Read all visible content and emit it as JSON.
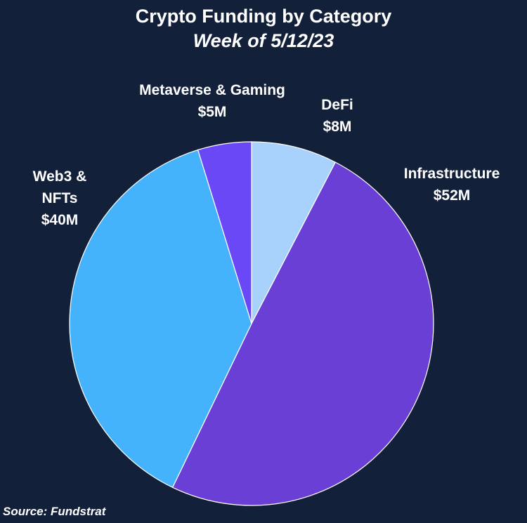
{
  "title": "Crypto Funding by Category",
  "subtitle": "Week of 5/12/23",
  "source": "Source: Fundstrat",
  "colors": {
    "background": "#13203a",
    "slice_border": "#ffffff"
  },
  "chart_data": {
    "type": "pie",
    "title": "Crypto Funding by Category",
    "subtitle": "Week of 5/12/23",
    "unit": "$M",
    "start_angle_deg": 0,
    "direction": "clockwise",
    "legend": "none",
    "slices": [
      {
        "label": "DeFi",
        "value": 8,
        "value_label": "$8M",
        "color": "#a8d1fb"
      },
      {
        "label": "Infrastructure",
        "value": 52,
        "value_label": "$52M",
        "color": "#6a3fd6"
      },
      {
        "label": "Web3 & NFTs",
        "label_lines": [
          "Web3 &",
          "NFTs"
        ],
        "value": 40,
        "value_label": "$40M",
        "color": "#45b3fb"
      },
      {
        "label": "Metaverse & Gaming",
        "value": 5,
        "value_label": "$5M",
        "color": "#6b48f5"
      }
    ]
  }
}
